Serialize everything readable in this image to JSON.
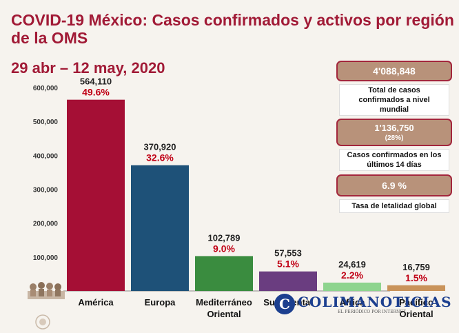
{
  "header": {
    "title_line1": "COVID-19 México: Casos confirmados y activos por región",
    "title_line2": "de la OMS",
    "subtitle": "29 abr – 12 may, 2020"
  },
  "kpis": [
    {
      "value": "4'088,848",
      "sub": "",
      "desc": [
        "Total de casos",
        "confirmados a nivel",
        "mundial"
      ]
    },
    {
      "value": "1'136,750",
      "sub": "(28%)",
      "desc": [
        "Casos confirmados en los",
        "últimos 14 días"
      ]
    },
    {
      "value": "6.9 %",
      "sub": "",
      "desc": [
        "Tasa de letalidad global"
      ]
    }
  ],
  "watermark": {
    "letter": "C",
    "name": "COLIMANOTICIAS",
    "tagline": "EL PERIÓDICO POR INTERNET"
  },
  "colors": {
    "title": "#a11a36",
    "percent_label": "#c00015",
    "kpi_fill": "#b8927a",
    "kpi_border": "#a3263c"
  },
  "chart_data": {
    "type": "bar",
    "categories": [
      [
        "América"
      ],
      [
        "Europa"
      ],
      [
        "Mediterráneo",
        "Oriental"
      ],
      [
        "Sudoriental"
      ],
      [
        "África"
      ],
      [
        "Pacífico",
        "Oriental"
      ]
    ],
    "values": [
      564110,
      370920,
      102789,
      57553,
      24619,
      16759
    ],
    "value_labels": [
      "564,110",
      "370,920",
      "102,789",
      "57,553",
      "24,619",
      "16,759"
    ],
    "percent_labels": [
      "49.6%",
      "32.6%",
      "9.0%",
      "5.1%",
      "2.2%",
      "1.5%"
    ],
    "bar_colors": [
      "#a50f35",
      "#1e5178",
      "#3a8c3f",
      "#6a3d80",
      "#8ed48e",
      "#c9935a"
    ],
    "yticks": [
      100000,
      200000,
      300000,
      400000,
      500000,
      600000
    ],
    "ytick_labels": [
      "100,000",
      "200,000",
      "300,000",
      "400,000",
      "500,000",
      "600,000"
    ],
    "ylim": [
      0,
      600000
    ],
    "grid": false
  }
}
